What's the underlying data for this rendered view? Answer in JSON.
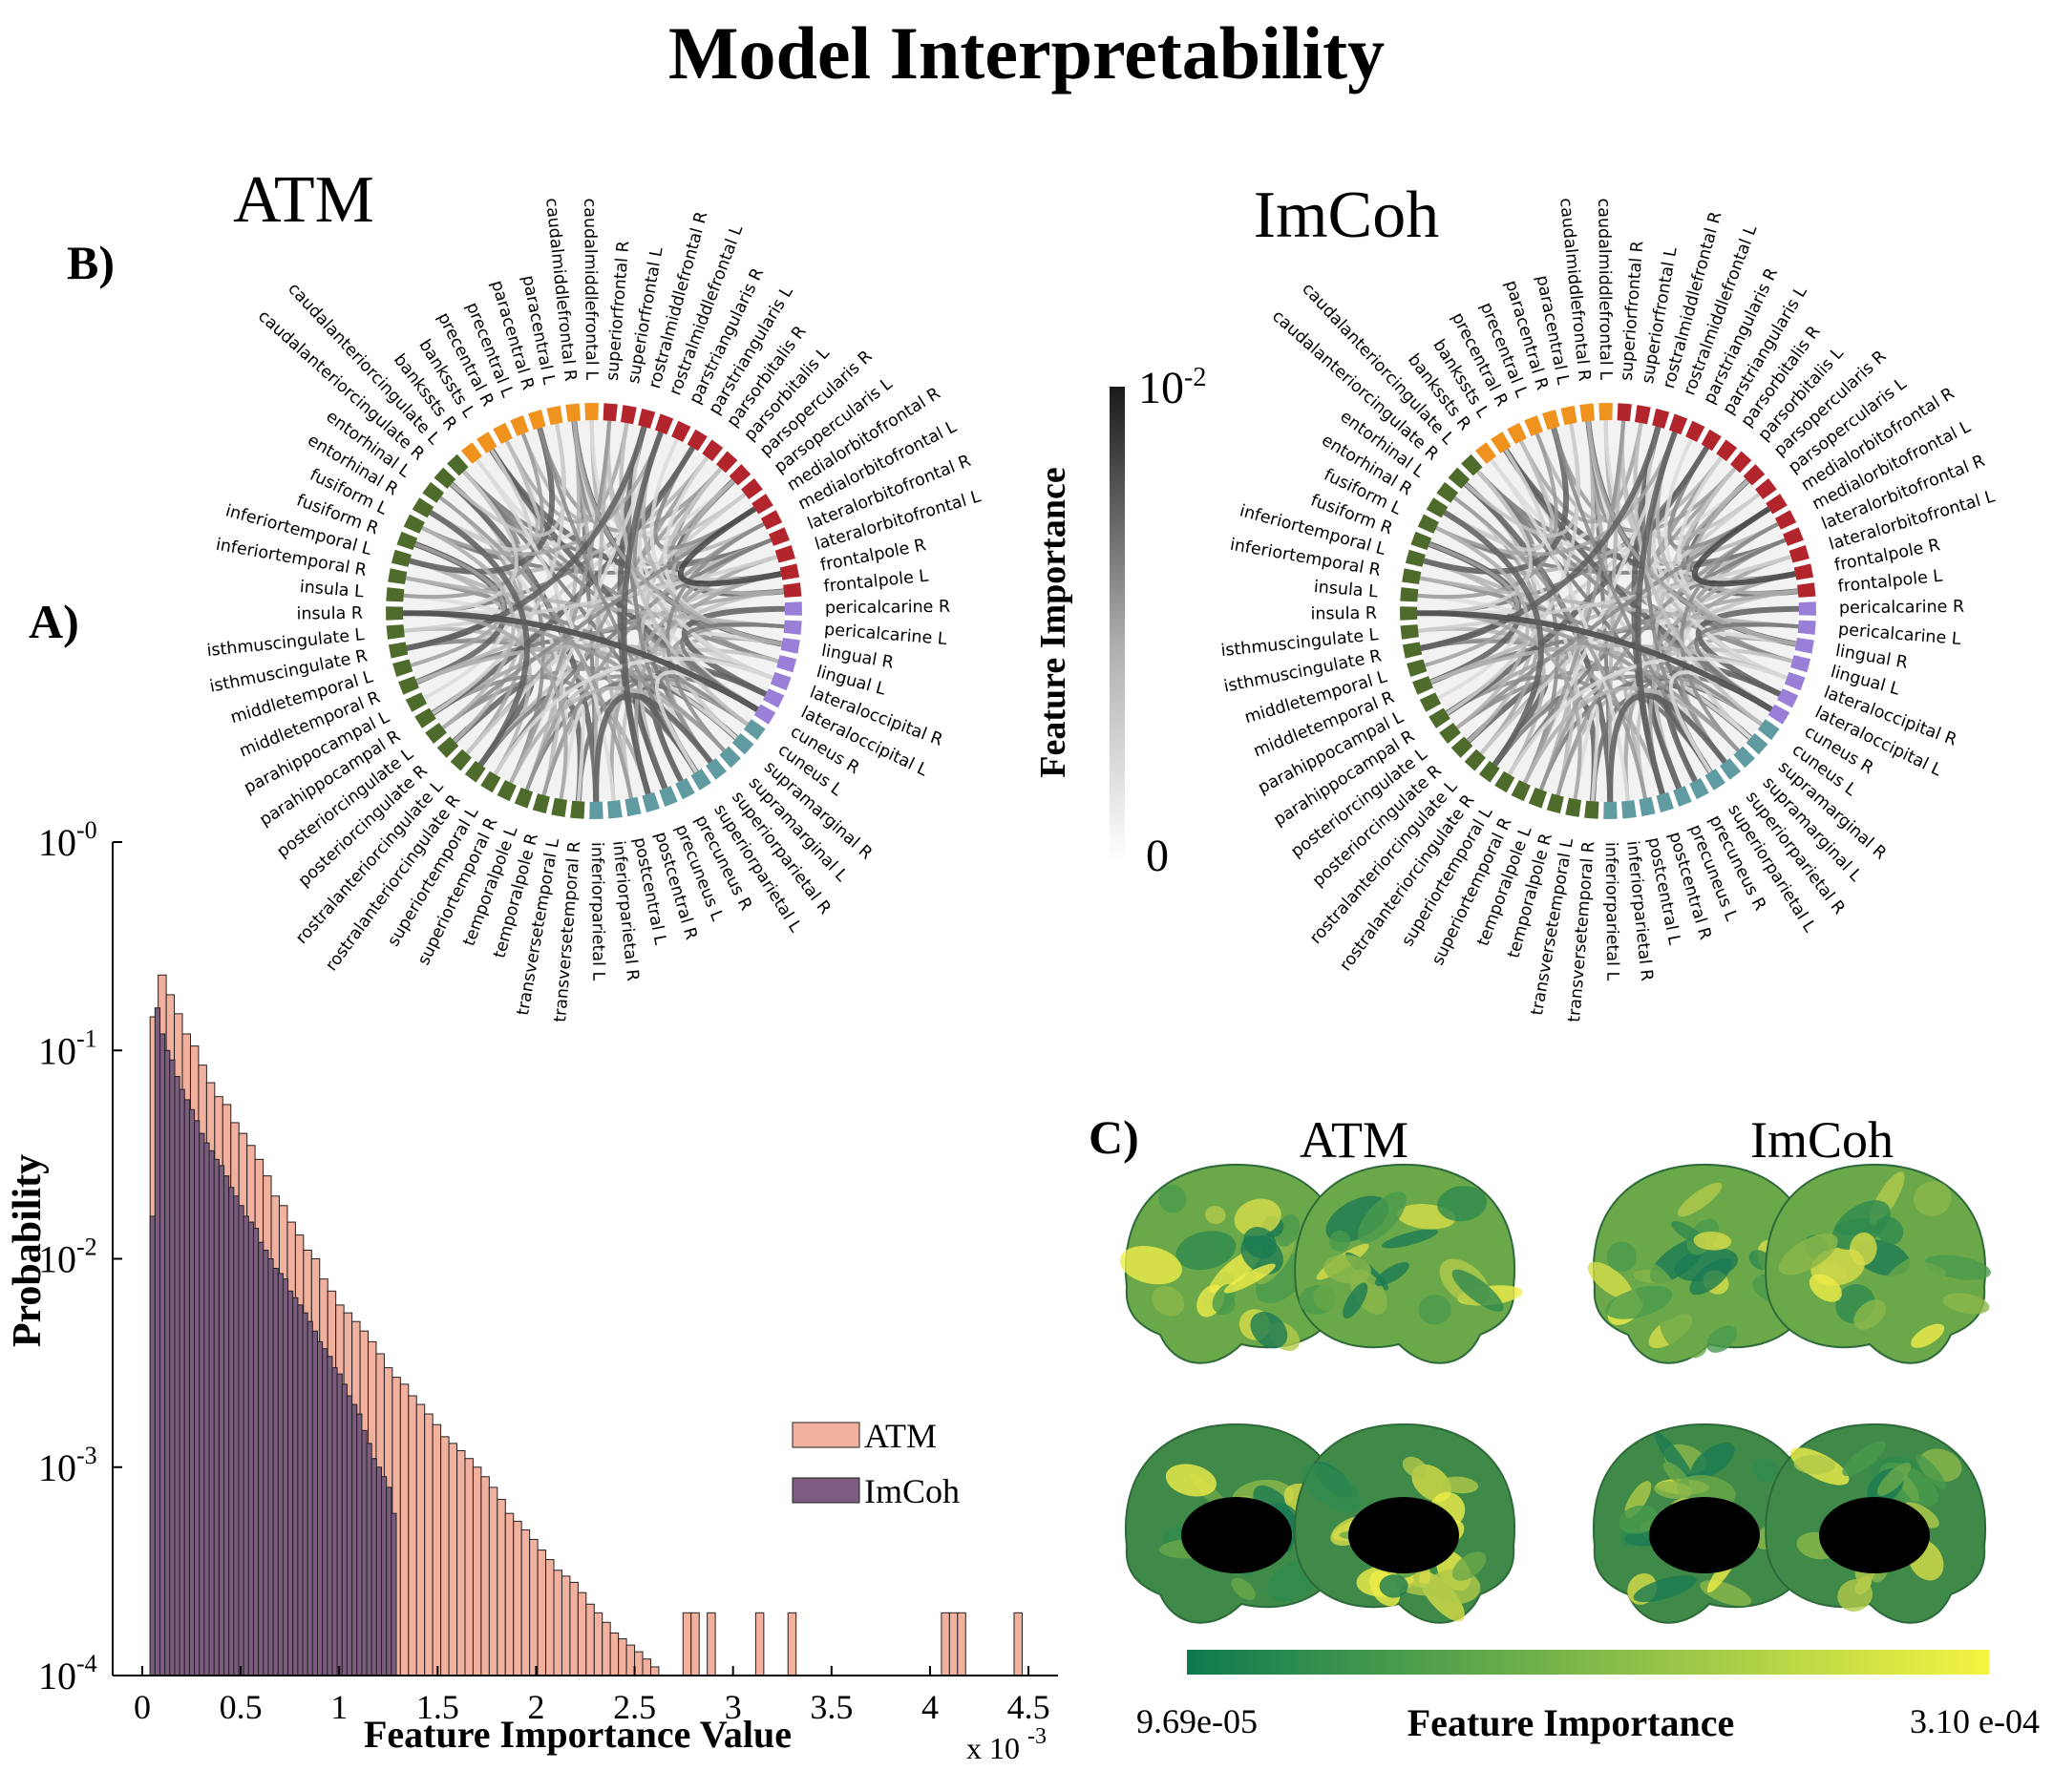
{
  "figure_title": "Model Interpretability",
  "panel_labels": {
    "a": "A)",
    "b": "B)",
    "c": "C)"
  },
  "chart_data": [
    {
      "type": "bar",
      "panel": "A)",
      "xlabel": "Feature Importance Value",
      "ylabel": "Probability",
      "x_multiplier": "x 10",
      "x_multiplier_exp": "-3",
      "xlim": [
        -0.15,
        4.65
      ],
      "ylim": [
        0.0001,
        1
      ],
      "yscale": "log",
      "xticks": [
        0,
        0.5,
        1,
        1.5,
        2,
        2.5,
        3,
        3.5,
        4,
        4.5
      ],
      "xtick_labels": [
        "0",
        "0.5",
        "1",
        "1.5",
        "2",
        "2.5",
        "3",
        "3.5",
        "4",
        "4.5"
      ],
      "ytick_labels": [
        {
          "base": "10",
          "exp": "-0"
        },
        {
          "base": "10",
          "exp": "-1"
        },
        {
          "base": "10",
          "exp": "-2"
        },
        {
          "base": "10",
          "exp": "-3"
        },
        {
          "base": "10",
          "exp": "-4"
        }
      ],
      "ytick_values": [
        1,
        0.1,
        0.01,
        0.001,
        0.0001
      ],
      "legend": [
        {
          "label": "ATM",
          "color": "#f2b09f"
        },
        {
          "label": "ImCoh",
          "color": "#7b5c7e"
        }
      ],
      "legend_position": "right",
      "series": [
        {
          "name": "ATM",
          "color": "#f2b09f",
          "bin_width": 0.041,
          "bin_start": 0.04,
          "values": [
            0.145,
            0.23,
            0.185,
            0.15,
            0.12,
            0.105,
            0.085,
            0.07,
            0.06,
            0.055,
            0.045,
            0.04,
            0.035,
            0.03,
            0.025,
            0.02,
            0.018,
            0.015,
            0.013,
            0.011,
            0.01,
            0.008,
            0.007,
            0.006,
            0.0055,
            0.005,
            0.0045,
            0.004,
            0.0035,
            0.003,
            0.0027,
            0.0025,
            0.0022,
            0.002,
            0.0018,
            0.0016,
            0.0014,
            0.0013,
            0.0012,
            0.0011,
            0.001,
            0.0009,
            0.0008,
            0.0007,
            0.0006,
            0.00055,
            0.0005,
            0.00045,
            0.0004,
            0.00036,
            0.00032,
            0.0003,
            0.00028,
            0.00025,
            0.00022,
            0.0002,
            0.00018,
            0.00016,
            0.00015,
            0.00014,
            0.00013,
            0.00012,
            0.00011,
            0.0001,
            0.0001,
            0,
            0.0002,
            0.0002,
            0,
            0.0002,
            0,
            0,
            0,
            0,
            0,
            0.0002,
            0,
            0,
            0,
            0.0002,
            0,
            0,
            0,
            0,
            0,
            0,
            0,
            0,
            0,
            0,
            0,
            0,
            0,
            0,
            0,
            0,
            0,
            0,
            0.0002,
            0.0002,
            0.0002,
            0,
            0,
            0,
            0,
            0,
            0,
            0.0002
          ]
        },
        {
          "name": "ImCoh",
          "color": "#7b5c7e",
          "bin_width": 0.025,
          "bin_start": 0.04,
          "values": [
            0.016,
            0.16,
            0.12,
            0.1,
            0.09,
            0.075,
            0.065,
            0.058,
            0.052,
            0.046,
            0.04,
            0.036,
            0.033,
            0.03,
            0.028,
            0.025,
            0.022,
            0.02,
            0.018,
            0.016,
            0.015,
            0.014,
            0.012,
            0.011,
            0.01,
            0.009,
            0.0085,
            0.008,
            0.007,
            0.0065,
            0.006,
            0.0055,
            0.005,
            0.0045,
            0.004,
            0.0037,
            0.0034,
            0.003,
            0.0028,
            0.0025,
            0.0022,
            0.002,
            0.0018,
            0.0015,
            0.0013,
            0.0011,
            0.001,
            0.0009,
            0.0008,
            0.0006
          ]
        }
      ]
    },
    {
      "type": "chord",
      "panel": "B)",
      "subplots": [
        {
          "title": "ATM"
        },
        {
          "title": "ImCoh"
        }
      ],
      "colorbar": {
        "title": "Feature Importance",
        "min_label": "0",
        "max_base": "10",
        "max_exp": "-2"
      },
      "group_colors": {
        "orange": "#f0921e",
        "red": "#b3252c",
        "purple": "#9a7fd8",
        "teal": "#5f9ba1",
        "green": "#4f6b2c"
      },
      "regions": [
        {
          "name": "superiorfrontal R",
          "group": "red"
        },
        {
          "name": "superiorfrontal L",
          "group": "red"
        },
        {
          "name": "rostralmiddlefrontal R",
          "group": "red"
        },
        {
          "name": "rostralmiddlefrontal L",
          "group": "red"
        },
        {
          "name": "parstriangularis R",
          "group": "red"
        },
        {
          "name": "parstriangularis L",
          "group": "red"
        },
        {
          "name": "parsorbitalis R",
          "group": "red"
        },
        {
          "name": "parsorbitalis L",
          "group": "red"
        },
        {
          "name": "parsopercularis R",
          "group": "red"
        },
        {
          "name": "parsopercularis L",
          "group": "red"
        },
        {
          "name": "medialorbitofrontal R",
          "group": "red"
        },
        {
          "name": "medialorbitofrontal L",
          "group": "red"
        },
        {
          "name": "lateralorbitofrontal R",
          "group": "red"
        },
        {
          "name": "lateralorbitofrontal L",
          "group": "red"
        },
        {
          "name": "frontalpole R",
          "group": "red"
        },
        {
          "name": "frontalpole L",
          "group": "red"
        },
        {
          "name": "pericalcarine R",
          "group": "purple"
        },
        {
          "name": "pericalcarine L",
          "group": "purple"
        },
        {
          "name": "lingual R",
          "group": "purple"
        },
        {
          "name": "lingual L",
          "group": "purple"
        },
        {
          "name": "lateraloccipital R",
          "group": "purple"
        },
        {
          "name": "lateraloccipital L",
          "group": "purple"
        },
        {
          "name": "cuneus R",
          "group": "purple"
        },
        {
          "name": "cuneus L",
          "group": "teal"
        },
        {
          "name": "supramarginal R",
          "group": "teal"
        },
        {
          "name": "supramarginal L",
          "group": "teal"
        },
        {
          "name": "superiorparietal R",
          "group": "teal"
        },
        {
          "name": "superiorparietal L",
          "group": "teal"
        },
        {
          "name": "precuneus R",
          "group": "teal"
        },
        {
          "name": "precuneus L",
          "group": "teal"
        },
        {
          "name": "postcentral R",
          "group": "teal"
        },
        {
          "name": "postcentral L",
          "group": "teal"
        },
        {
          "name": "inferiorparietal R",
          "group": "teal"
        },
        {
          "name": "inferiorparietal L",
          "group": "teal"
        },
        {
          "name": "transversetemporal R",
          "group": "green"
        },
        {
          "name": "transversetemporal L",
          "group": "green"
        },
        {
          "name": "temporalpole R",
          "group": "green"
        },
        {
          "name": "temporalpole L",
          "group": "green"
        },
        {
          "name": "superiortemporal R",
          "group": "green"
        },
        {
          "name": "superiortemporal L",
          "group": "green"
        },
        {
          "name": "rostralanteriorcingulate R",
          "group": "green"
        },
        {
          "name": "rostralanteriorcingulate L",
          "group": "green"
        },
        {
          "name": "posteriorcingulate R",
          "group": "green"
        },
        {
          "name": "posteriorcingulate L",
          "group": "green"
        },
        {
          "name": "parahippocampal R",
          "group": "green"
        },
        {
          "name": "parahippocampal L",
          "group": "green"
        },
        {
          "name": "middletemporal R",
          "group": "green"
        },
        {
          "name": "middletemporal L",
          "group": "green"
        },
        {
          "name": "isthmuscingulate R",
          "group": "green"
        },
        {
          "name": "isthmuscingulate L",
          "group": "green"
        },
        {
          "name": "insula R",
          "group": "green"
        },
        {
          "name": "insula L",
          "group": "green"
        },
        {
          "name": "inferiortemporal R",
          "group": "green"
        },
        {
          "name": "inferiortemporal L",
          "group": "green"
        },
        {
          "name": "fusiform R",
          "group": "green"
        },
        {
          "name": "fusiform L",
          "group": "green"
        },
        {
          "name": "entorhinal R",
          "group": "green"
        },
        {
          "name": "entorhinal L",
          "group": "green"
        },
        {
          "name": "caudalanteriorcingulate R",
          "group": "green"
        },
        {
          "name": "caudalanteriorcingulate L",
          "group": "green"
        },
        {
          "name": "bankssts R",
          "group": "orange"
        },
        {
          "name": "bankssts L",
          "group": "orange"
        },
        {
          "name": "precentral R",
          "group": "orange"
        },
        {
          "name": "precentral L",
          "group": "orange"
        },
        {
          "name": "paracentral R",
          "group": "orange"
        },
        {
          "name": "paracentral L",
          "group": "orange"
        },
        {
          "name": "caudalmiddlefrontal R",
          "group": "orange"
        },
        {
          "name": "caudalmiddlefrontal L",
          "group": "orange"
        }
      ]
    },
    {
      "type": "heatmap",
      "panel": "C)",
      "titles": [
        "ATM",
        "ImCoh"
      ],
      "colorbar": {
        "title": "Feature Importance",
        "min_label": "9.69e-05",
        "max_label": "3.10 e-04",
        "min_color": "#0d7a4f",
        "max_color": "#f5f542"
      },
      "views": [
        "lateral",
        "lateral",
        "medial",
        "medial"
      ]
    }
  ]
}
